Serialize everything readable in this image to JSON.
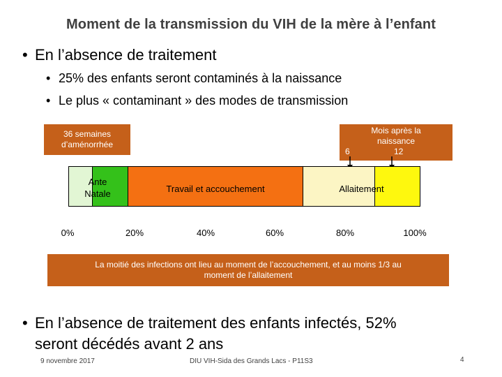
{
  "title": "Moment de la transmission du VIH de la mère à l’enfant",
  "bullets": {
    "b1": "En l’absence de traitement",
    "b1_sub1": "25% des enfants seront contaminés à la naissance",
    "b1_sub2": "Le plus « contaminant » des modes de transmission",
    "b2_line1": "En l’absence de traitement des enfants infectés, 52%",
    "b2_line2": "seront décédés avant 2 ans"
  },
  "diagram": {
    "weeks_label_line1": "36 semaines",
    "weeks_label_line2": "d’aménorrhée",
    "months_label_line1": "Mois après la",
    "months_label_line2": "naissance",
    "month_6": "6",
    "month_12": "12",
    "antenatal_line1": "Ante",
    "antenatal_line2": "Natale",
    "labor": "Travail et accouchement",
    "breastfeeding": "Allaitement",
    "ticks": [
      "0%",
      "20%",
      "40%",
      "60%",
      "80%",
      "100%"
    ],
    "colors": {
      "antenatal_light": "#e2f6d4",
      "antenatal_green": "#34c11a",
      "labor": "#f47012",
      "breast_light": "#fcf5c4",
      "breast_yellow": "#fef80e",
      "box": "#c5601a"
    }
  },
  "conclusion_line1": "La moitié des infections ont lieu au moment de l’accouchement, et au moins 1/3 au",
  "conclusion_line2": "moment de l’allaitement",
  "footer": {
    "date": "9 novembre 2017",
    "center": "DIU VIH-Sida des Grands Lacs - P11S3",
    "page": "4"
  }
}
